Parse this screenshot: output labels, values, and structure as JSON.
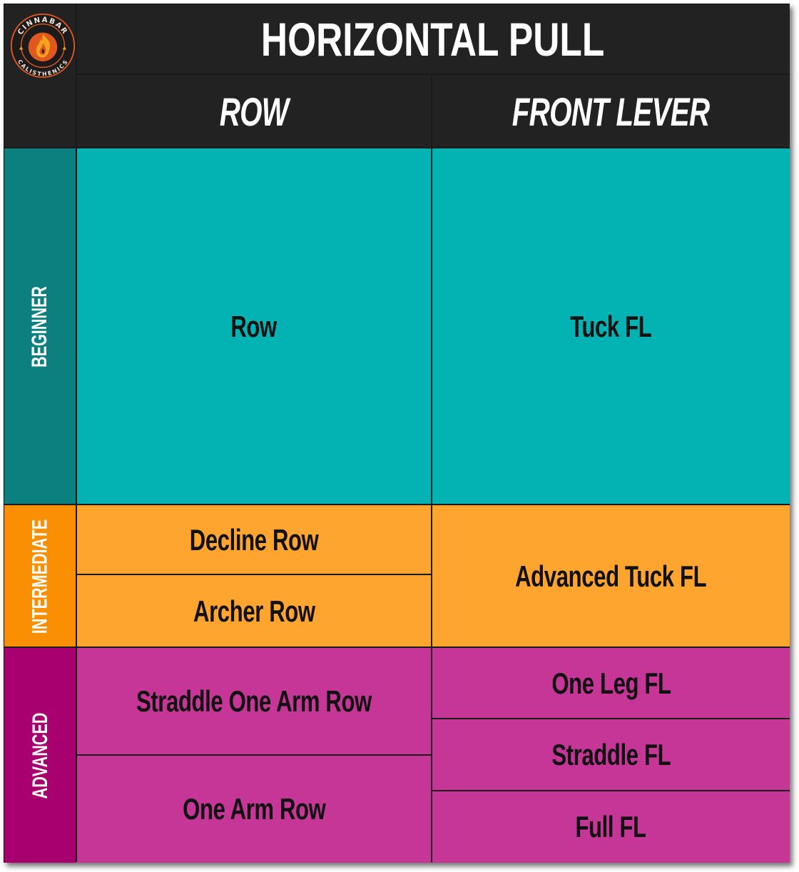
{
  "logo": {
    "top_text": "CINNABAR",
    "bottom_text": "CALISTHENICS",
    "colors": {
      "ring": "#e0581e",
      "flame": "#f5a21e",
      "inner": "#3a1a10"
    }
  },
  "title": "HORIZONTAL PULL",
  "columns": [
    "ROW",
    "FRONT LEVER"
  ],
  "levels": {
    "beginner": {
      "label": "BEGINNER",
      "color": "#0b807f",
      "cell_color": "#03b3b4",
      "row": [
        "Row"
      ],
      "front_lever": [
        "Tuck FL"
      ]
    },
    "intermediate": {
      "label": "INTERMEDIATE",
      "color": "#fb8f03",
      "cell_color": "#fda52f",
      "row": [
        "Decline Row",
        "Archer Row"
      ],
      "front_lever": [
        "Advanced Tuck FL"
      ]
    },
    "advanced": {
      "label": "ADVANCED",
      "color": "#a8006f",
      "cell_color": "#c63696",
      "row": [
        "Straddle One Arm Row",
        "One Arm Row"
      ],
      "front_lever": [
        "One Leg FL",
        "Straddle FL",
        "Full FL"
      ]
    }
  }
}
